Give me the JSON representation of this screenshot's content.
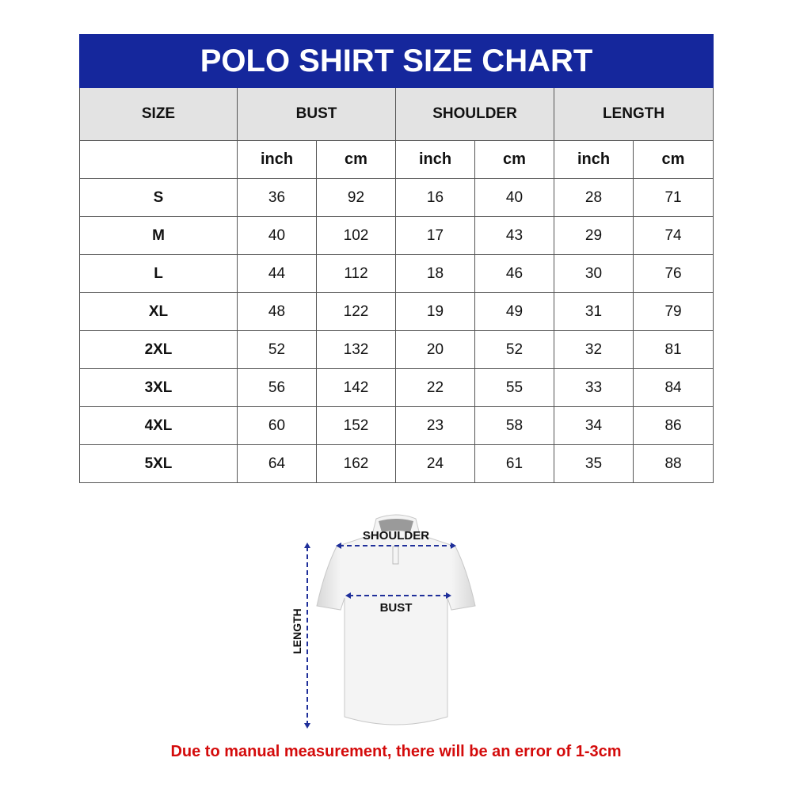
{
  "title": "POLO SHIRT SIZE CHART",
  "headers": [
    "SIZE",
    "BUST",
    "SHOULDER",
    "LENGTH"
  ],
  "units": [
    "inch",
    "cm",
    "inch",
    "cm",
    "inch",
    "cm"
  ],
  "rows": [
    {
      "size": "S",
      "values": [
        "36",
        "92",
        "16",
        "40",
        "28",
        "71"
      ]
    },
    {
      "size": "M",
      "values": [
        "40",
        "102",
        "17",
        "43",
        "29",
        "74"
      ]
    },
    {
      "size": "L",
      "values": [
        "44",
        "112",
        "18",
        "46",
        "30",
        "76"
      ]
    },
    {
      "size": "XL",
      "values": [
        "48",
        "122",
        "19",
        "49",
        "31",
        "79"
      ]
    },
    {
      "size": "2XL",
      "values": [
        "52",
        "132",
        "20",
        "52",
        "32",
        "81"
      ]
    },
    {
      "size": "3XL",
      "values": [
        "56",
        "142",
        "22",
        "55",
        "33",
        "84"
      ]
    },
    {
      "size": "4XL",
      "values": [
        "60",
        "152",
        "23",
        "58",
        "34",
        "86"
      ]
    },
    {
      "size": "5XL",
      "values": [
        "64",
        "162",
        "24",
        "61",
        "35",
        "88"
      ]
    }
  ],
  "illustration": {
    "shoulder_label": "SHOULDER",
    "bust_label": "BUST",
    "length_label": "LENGTH"
  },
  "note": "Due to manual measurement, there will be an error of 1-3cm",
  "colors": {
    "header_bg": "#15279c",
    "arrow": "#1f2f9a",
    "note": "#d40b0b",
    "subheader_bg": "#e3e3e3"
  }
}
